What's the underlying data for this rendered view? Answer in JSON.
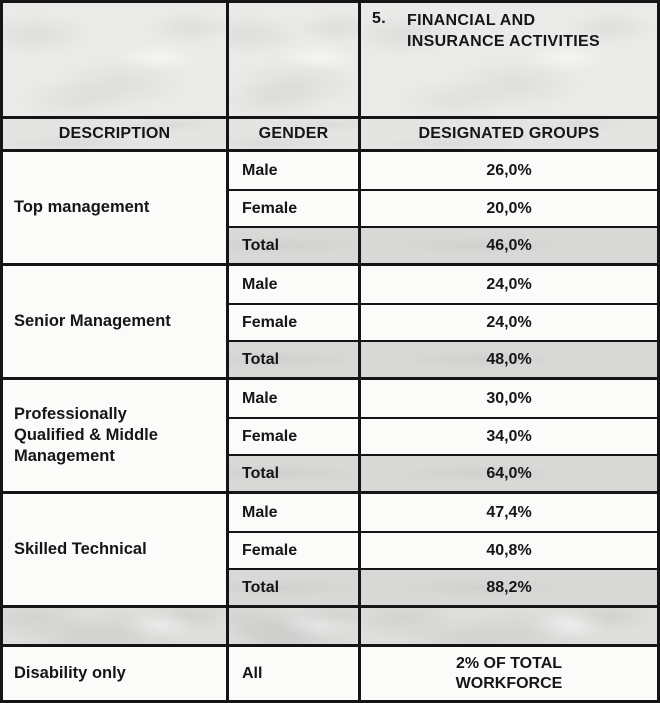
{
  "banner": {
    "item_number": "5.",
    "title_lines": [
      "FINANCIAL AND",
      "INSURANCE ACTIVITIES"
    ]
  },
  "table": {
    "headers": {
      "description": "DESCRIPTION",
      "gender": "GENDER",
      "designated_groups": "DESIGNATED GROUPS"
    },
    "sections": [
      {
        "description": "Top management",
        "rows": [
          {
            "gender": "Male",
            "value": "26,0%"
          },
          {
            "gender": "Female",
            "value": "20,0%"
          },
          {
            "gender": "Total",
            "value": "46,0%"
          }
        ]
      },
      {
        "description": "Senior Management",
        "rows": [
          {
            "gender": "Male",
            "value": "24,0%"
          },
          {
            "gender": "Female",
            "value": "24,0%"
          },
          {
            "gender": "Total",
            "value": "48,0%"
          }
        ]
      },
      {
        "description": "Professionally Qualified & Middle Management",
        "rows": [
          {
            "gender": "Male",
            "value": "30,0%"
          },
          {
            "gender": "Female",
            "value": "34,0%"
          },
          {
            "gender": "Total",
            "value": "64,0%"
          }
        ]
      },
      {
        "description": "Skilled Technical",
        "rows": [
          {
            "gender": "Male",
            "value": "47,4%"
          },
          {
            "gender": "Female",
            "value": "40,8%"
          },
          {
            "gender": "Total",
            "value": "88,2%"
          }
        ]
      }
    ],
    "footer_row": {
      "description": "Disability only",
      "gender": "All",
      "value": "2% OF TOTAL WORKFORCE"
    }
  },
  "colors": {
    "border": "#151515",
    "text": "#161616",
    "header_bg": "#e4e4e2",
    "total_row_bg": "#d8d8d6",
    "banner_bg": "#eaeae8",
    "separator_bg": "#dededc",
    "cell_bg": "#fbfbfa"
  }
}
